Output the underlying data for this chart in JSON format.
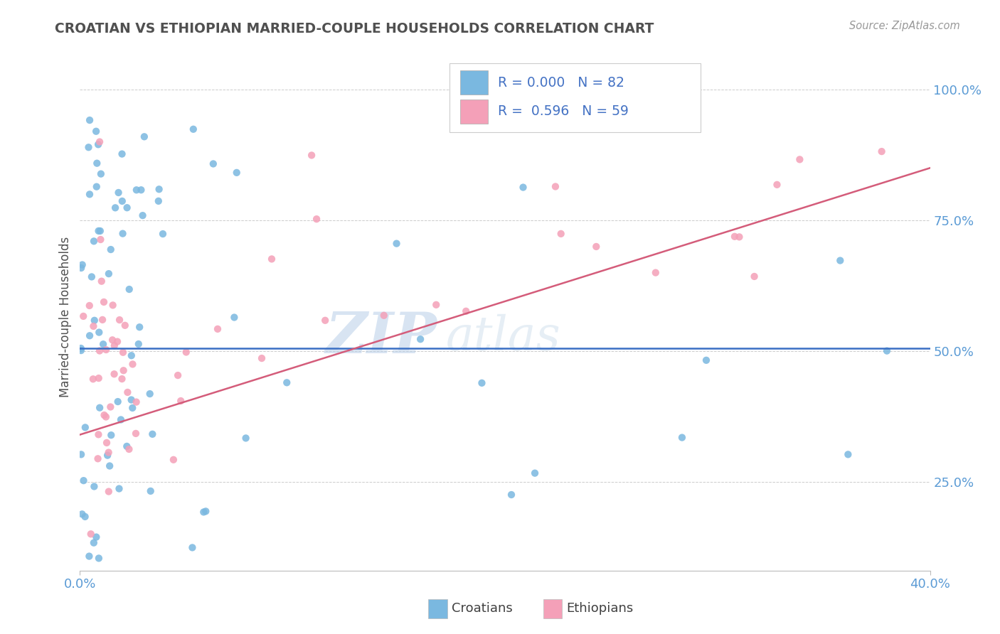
{
  "title": "CROATIAN VS ETHIOPIAN MARRIED-COUPLE HOUSEHOLDS CORRELATION CHART",
  "source_text": "Source: ZipAtlas.com",
  "ylabel": "Married-couple Households",
  "xlim": [
    0.0,
    0.4
  ],
  "ylim": [
    0.08,
    1.05
  ],
  "x_ticks": [
    0.0,
    0.4
  ],
  "x_tick_labels": [
    "0.0%",
    "40.0%"
  ],
  "y_ticks": [
    0.25,
    0.5,
    0.75,
    1.0
  ],
  "y_tick_labels": [
    "25.0%",
    "50.0%",
    "75.0%",
    "100.0%"
  ],
  "croatian_color": "#7ab8e0",
  "ethiopian_color": "#f4a0b8",
  "croatian_R": 0.0,
  "croatian_N": 82,
  "ethiopian_R": 0.596,
  "ethiopian_N": 59,
  "trendline_croatian_color": "#3a6fc4",
  "trendline_ethiopian_color": "#d45c7a",
  "watermark_zip": "ZIP",
  "watermark_atlas": "atlas",
  "title_color": "#505050",
  "axis_color": "#5b9bd5",
  "legend_color": "#4472c4",
  "background_color": "#ffffff",
  "grid_color": "#cccccc"
}
